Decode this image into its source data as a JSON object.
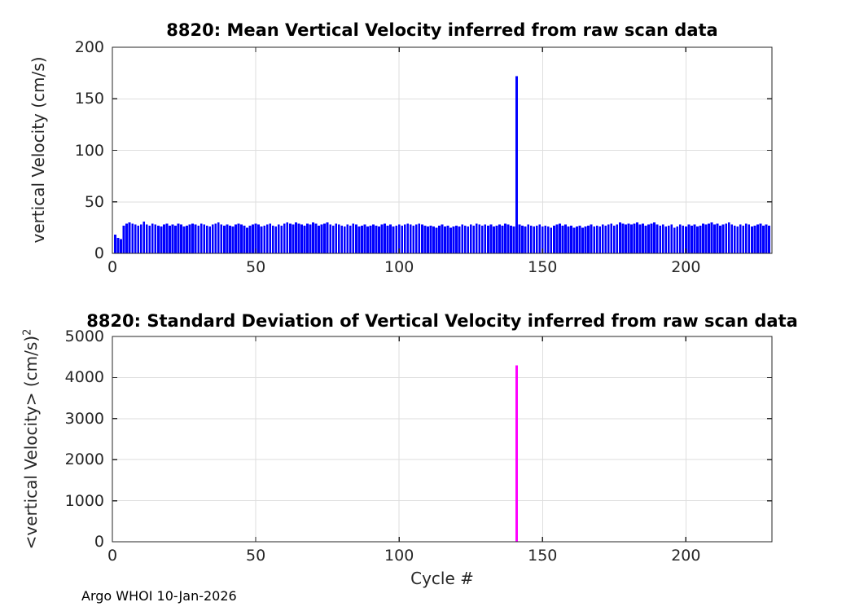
{
  "figure": {
    "background": "#ffffff"
  },
  "colors": {
    "axis": "#262626",
    "grid": "#dedede",
    "tick_text": "#262626",
    "title_text": "#000000",
    "bar_top": "#0000ff",
    "bar_bottom": "#ff00ff"
  },
  "footer": {
    "text": "Argo WHOI 10-Jan-2026"
  },
  "chart_data": [
    {
      "type": "bar",
      "title": "8820: Mean Vertical Velocity inferred from raw scan data",
      "xlabel": "",
      "ylabel": "vertical Velocity (cm/s)",
      "xlim": [
        0,
        230
      ],
      "ylim": [
        0,
        200
      ],
      "xticks": [
        0,
        50,
        100,
        150,
        200
      ],
      "yticks": [
        0,
        50,
        100,
        150,
        200
      ],
      "grid": true,
      "legend": "none",
      "bar_color": "#0000ff",
      "x_start_cycle": 1,
      "spike": {
        "cycle": 141,
        "value": 172
      },
      "values": [
        18,
        15,
        14,
        27,
        29,
        30,
        29,
        28,
        27,
        28,
        31,
        28,
        27,
        29,
        28,
        27,
        26,
        28,
        29,
        27,
        28,
        27,
        29,
        28,
        26,
        27,
        28,
        29,
        28,
        27,
        29,
        28,
        27,
        26,
        28,
        29,
        30,
        28,
        27,
        28,
        27,
        26,
        28,
        29,
        28,
        27,
        25,
        27,
        28,
        29,
        28,
        26,
        27,
        28,
        29,
        27,
        26,
        28,
        27,
        29,
        30,
        29,
        28,
        30,
        29,
        28,
        27,
        29,
        28,
        30,
        29,
        27,
        28,
        29,
        30,
        28,
        27,
        29,
        28,
        27,
        26,
        28,
        27,
        29,
        28,
        26,
        27,
        28,
        26,
        27,
        28,
        27,
        26,
        28,
        29,
        27,
        28,
        26,
        27,
        28,
        27,
        28,
        29,
        28,
        27,
        28,
        29,
        28,
        27,
        26,
        27,
        26,
        25,
        27,
        28,
        26,
        27,
        25,
        26,
        27,
        26,
        28,
        27,
        26,
        28,
        27,
        29,
        28,
        27,
        28,
        27,
        28,
        26,
        27,
        28,
        27,
        29,
        28,
        27,
        26,
        172,
        28,
        27,
        26,
        28,
        27,
        26,
        27,
        28,
        26,
        27,
        26,
        25,
        27,
        28,
        29,
        27,
        28,
        26,
        27,
        25,
        26,
        27,
        25,
        26,
        27,
        28,
        26,
        27,
        26,
        28,
        27,
        28,
        29,
        27,
        28,
        30,
        29,
        28,
        29,
        28,
        29,
        30,
        28,
        29,
        27,
        28,
        29,
        30,
        28,
        27,
        28,
        26,
        27,
        28,
        25,
        26,
        28,
        27,
        26,
        28,
        27,
        28,
        26,
        27,
        29,
        28,
        29,
        30,
        28,
        29,
        27,
        28,
        29,
        30,
        28,
        27,
        26,
        28,
        27,
        29,
        28,
        26,
        27,
        28,
        29,
        27,
        28,
        27
      ]
    },
    {
      "type": "bar",
      "title": "8820: Standard Deviation of Vertical Velocity inferred from raw scan data",
      "xlabel": "Cycle #",
      "ylabel": "<vertical Velocity> (cm/s)",
      "ylabel_superscript": "2",
      "xlim": [
        0,
        230
      ],
      "ylim": [
        0,
        5000
      ],
      "xticks": [
        0,
        50,
        100,
        150,
        200
      ],
      "yticks": [
        0,
        1000,
        2000,
        3000,
        4000,
        5000
      ],
      "grid": true,
      "legend": "none",
      "bar_color": "#ff00ff",
      "x_start_cycle": 1,
      "n_cycles": 229,
      "baseline_value": 0,
      "spikes": [
        {
          "cycle": 141,
          "value": 4300
        }
      ]
    }
  ]
}
